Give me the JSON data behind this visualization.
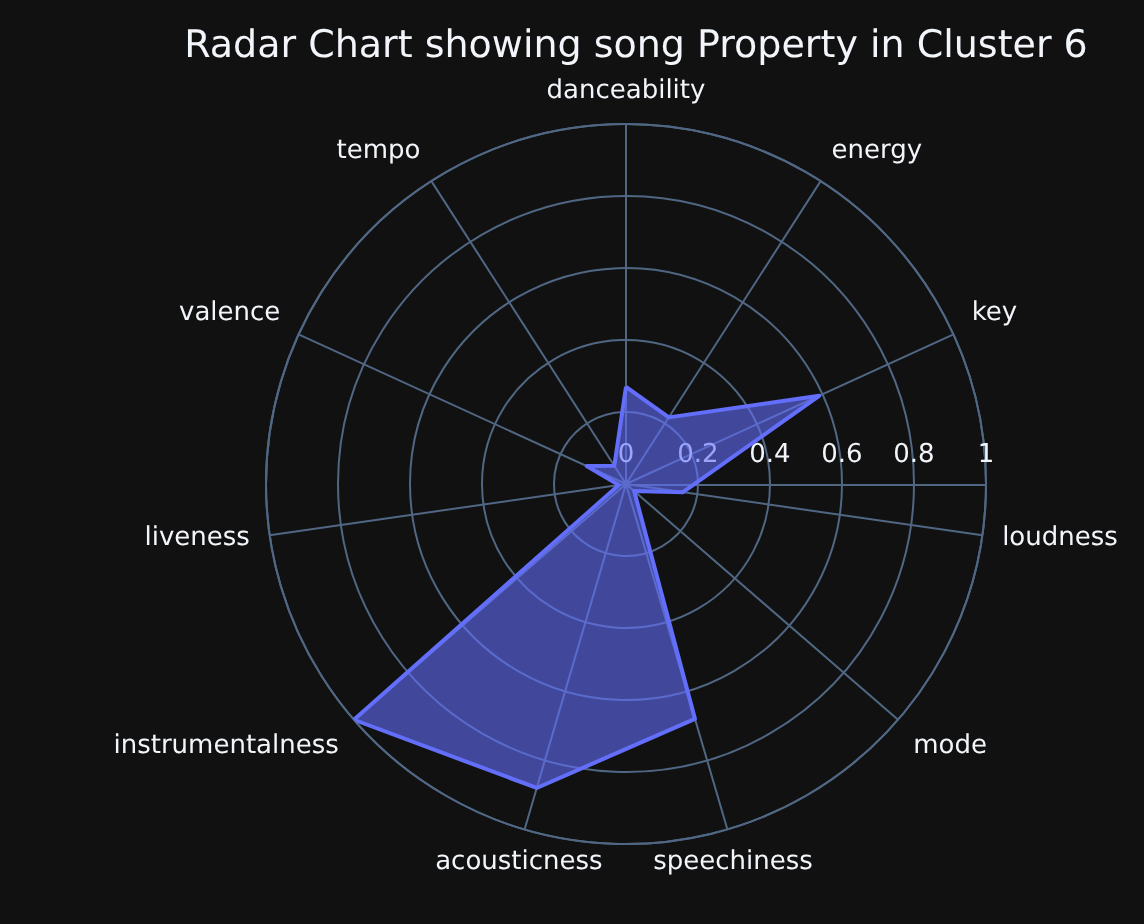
{
  "chart_data": {
    "type": "radar",
    "title": "Radar Chart showing song Property in Cluster 6",
    "categories": [
      "danceability",
      "energy",
      "key",
      "loudness",
      "mode",
      "speechiness",
      "acousticness",
      "instrumentalness",
      "liveness",
      "valence",
      "tempo"
    ],
    "series": [
      {
        "color": "#636efa",
        "values": [
          0.27,
          0.22,
          0.59,
          0.16,
          0.03,
          0.68,
          0.88,
          1.0,
          0.02,
          0.12,
          0.06
        ]
      }
    ],
    "ylim": [
      0,
      1
    ],
    "yticks": [
      0,
      0.2,
      0.4,
      0.6,
      0.8,
      1
    ],
    "grid": true
  }
}
